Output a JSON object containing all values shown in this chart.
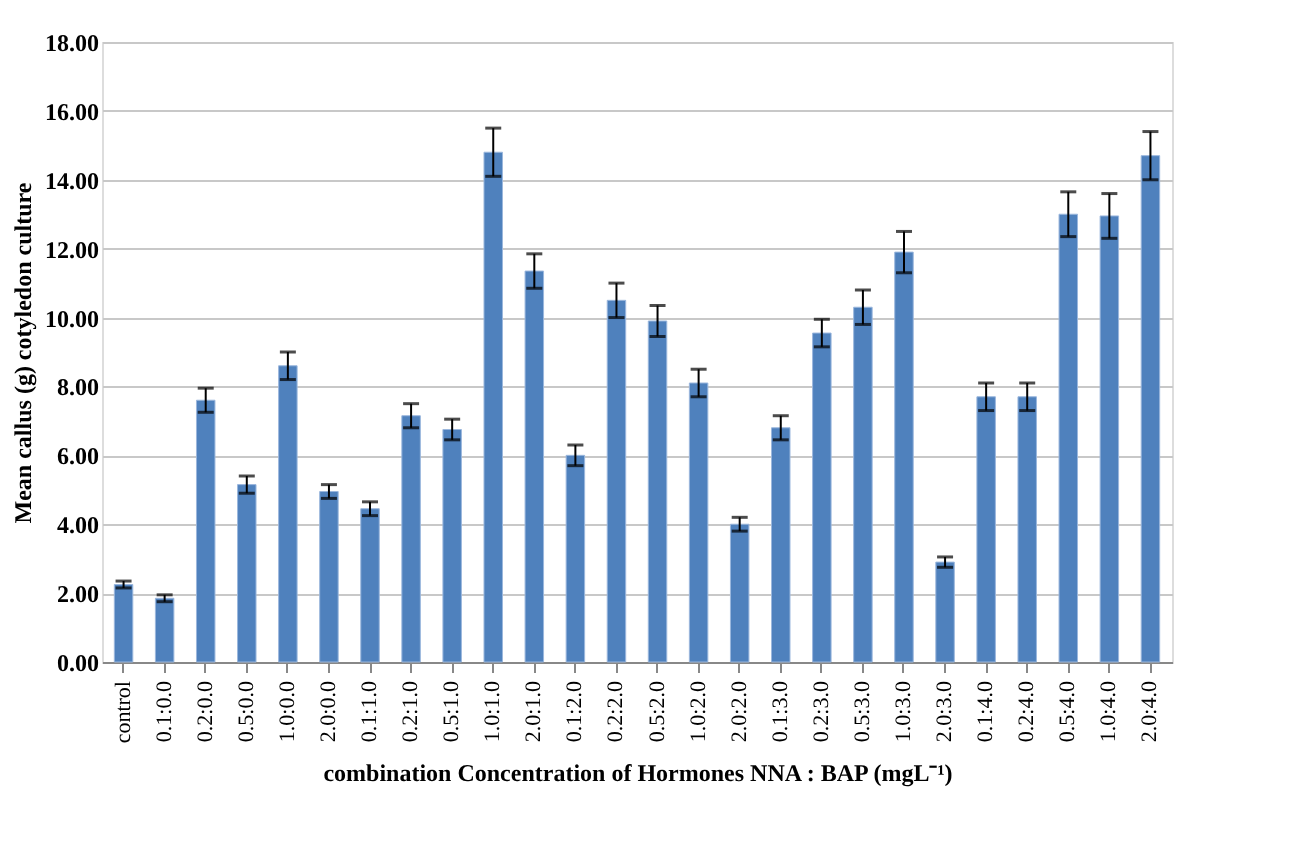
{
  "chart_data": {
    "type": "bar",
    "xlabel": "combination Concentration of Hormones  NNA : BAP (mgL⁻¹)",
    "ylabel": "Mean callus (g) cotyledon culture",
    "categories": [
      "control",
      "0.1:0.0",
      "0.2:0.0",
      "0.5:0.0",
      "1.0:0.0",
      "2.0:0.0",
      "0.1:1.0",
      "0.2:1.0",
      "0.5:1.0",
      "1.0:1.0",
      "2.0:1.0",
      "0.1:2.0",
      "0.2:2.0",
      "0.5:2.0",
      "1.0:2.0",
      "2.0:2.0",
      "0.1:3.0",
      "0.2:3.0",
      "0.5:3.0",
      "1.0:3.0",
      "2.0:3.0",
      "0.1:4.0",
      "0.2:4.0",
      "0.5:4.0",
      "1.0:4.0",
      "2.0:4.0"
    ],
    "values": [
      2.25,
      1.85,
      7.6,
      5.15,
      8.6,
      4.95,
      4.45,
      7.15,
      6.75,
      14.8,
      11.35,
      6.0,
      10.5,
      9.9,
      8.1,
      4.0,
      6.8,
      9.55,
      10.3,
      11.9,
      2.9,
      7.7,
      7.7,
      13.0,
      12.95,
      14.7
    ],
    "errors": [
      0.1,
      0.1,
      0.35,
      0.25,
      0.4,
      0.2,
      0.2,
      0.35,
      0.3,
      0.7,
      0.5,
      0.3,
      0.5,
      0.45,
      0.4,
      0.2,
      0.35,
      0.4,
      0.5,
      0.6,
      0.15,
      0.4,
      0.4,
      0.65,
      0.65,
      0.7
    ],
    "color": "#4f81bd",
    "ylim": [
      0,
      18
    ],
    "yticks": [
      {
        "value": 0,
        "label": "0.00"
      },
      {
        "value": 2,
        "label": "2.00"
      },
      {
        "value": 4,
        "label": "4.00"
      },
      {
        "value": 6,
        "label": "6.00"
      },
      {
        "value": 8,
        "label": "8.00"
      },
      {
        "value": 10,
        "label": "10.00"
      },
      {
        "value": 12,
        "label": "12.00"
      },
      {
        "value": 14,
        "label": "14.00"
      },
      {
        "value": 16,
        "label": "16.00"
      },
      {
        "value": 18,
        "label": "18.00"
      }
    ],
    "grid": "y"
  }
}
